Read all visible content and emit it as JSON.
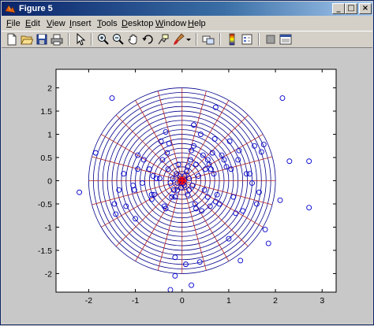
{
  "window": {
    "title": "Figure 5"
  },
  "titlebar_buttons": {
    "minimize": "_",
    "maximize": "□",
    "close": "×"
  },
  "menu": [
    {
      "label": "File",
      "accel": "F",
      "rest": "ile"
    },
    {
      "label": "Edit",
      "accel": "E",
      "rest": "dit"
    },
    {
      "label": "View",
      "accel": "V",
      "rest": "iew"
    },
    {
      "label": "Insert",
      "accel": "I",
      "rest": "nsert"
    },
    {
      "label": "Tools",
      "accel": "T",
      "rest": "ools"
    },
    {
      "label": "Desktop",
      "accel": "D",
      "rest": "esktop"
    },
    {
      "label": "Window",
      "accel": "W",
      "rest": "indow"
    },
    {
      "label": "Help",
      "accel": "H",
      "rest": "elp"
    }
  ],
  "toolbar": {
    "icons": [
      "new-figure-icon",
      "open-file-icon",
      "save-icon",
      "print-icon",
      "arrow-select-icon",
      "zoom-in-icon",
      "zoom-out-icon",
      "pan-hand-icon",
      "rotate-3d-icon",
      "data-cursor-icon",
      "brush-icon",
      "brush-dropdown-icon",
      "link-plot-icon",
      "insert-colorbar-icon",
      "insert-legend-icon",
      "hide-plot-tools-icon",
      "show-plot-tools-icon"
    ]
  },
  "colors": {
    "grid": "#00008b",
    "spokes": "#b22222",
    "points": "#0000cd",
    "center": "#ff0000"
  },
  "chart_data": {
    "type": "scatter",
    "title": "",
    "xlabel": "",
    "ylabel": "",
    "xlim": [
      -2.7,
      3.3
    ],
    "ylim": [
      -2.4,
      2.4
    ],
    "xticks": [
      -2,
      -1,
      0,
      1,
      2,
      3
    ],
    "yticks": [
      -2,
      -1.5,
      -1,
      -0.5,
      0,
      0.5,
      1,
      1.5,
      2
    ],
    "xtick_labels": [
      "-2",
      "-1",
      "0",
      "1",
      "2",
      "3"
    ],
    "ytick_labels": [
      "-2",
      "-1.5",
      "-1",
      "-0.5",
      "0",
      "0.5",
      "1",
      "1.5",
      "2"
    ],
    "polar_grid": {
      "max_radius": 2.0,
      "ring_count": 20,
      "spoke_count": 24
    },
    "center_marker": {
      "x": 0,
      "y": 0
    },
    "marker": "circle-open",
    "points": [
      [
        -2.2,
        -0.25
      ],
      [
        -1.85,
        0.6
      ],
      [
        -1.5,
        1.78
      ],
      [
        -1.45,
        -0.5
      ],
      [
        -1.42,
        -0.72
      ],
      [
        -1.35,
        -0.2
      ],
      [
        -1.25,
        0.15
      ],
      [
        -1.2,
        -0.55
      ],
      [
        -1.05,
        -0.1
      ],
      [
        -1.02,
        -0.2
      ],
      [
        -1.0,
        -0.82
      ],
      [
        -0.95,
        0.55
      ],
      [
        -0.95,
        0.25
      ],
      [
        -0.85,
        -0.05
      ],
      [
        -0.82,
        0.45
      ],
      [
        -0.7,
        0.25
      ],
      [
        -0.65,
        -0.3
      ],
      [
        -0.65,
        -0.4
      ],
      [
        -0.6,
        -0.3
      ],
      [
        -0.62,
        0.1
      ],
      [
        -0.55,
        0.05
      ],
      [
        -0.48,
        0.05
      ],
      [
        -0.45,
        0.85
      ],
      [
        -0.42,
        0.45
      ],
      [
        -0.38,
        -0.55
      ],
      [
        -0.35,
        -0.6
      ],
      [
        -0.35,
        1.05
      ],
      [
        -0.32,
        0.6
      ],
      [
        -0.3,
        0.25
      ],
      [
        -0.28,
        0.8
      ],
      [
        -0.25,
        -0.05
      ],
      [
        -0.22,
        -0.35
      ],
      [
        -0.2,
        0.05
      ],
      [
        -0.18,
        -0.2
      ],
      [
        -0.15,
        -0.35
      ],
      [
        -0.15,
        -1.65
      ],
      [
        -0.12,
        0.15
      ],
      [
        -0.1,
        -0.05
      ],
      [
        -0.1,
        -0.2
      ],
      [
        -0.08,
        0.35
      ],
      [
        -0.05,
        0.1
      ],
      [
        -0.02,
        -0.15
      ],
      [
        0.0,
        0.0
      ],
      [
        0.02,
        -0.05
      ],
      [
        0.05,
        0.1
      ],
      [
        0.05,
        -0.1
      ],
      [
        0.08,
        -1.8
      ],
      [
        0.1,
        0.2
      ],
      [
        0.12,
        0.3
      ],
      [
        0.12,
        -0.3
      ],
      [
        0.15,
        0.05
      ],
      [
        0.15,
        -0.2
      ],
      [
        0.18,
        0.45
      ],
      [
        0.2,
        0.65
      ],
      [
        0.22,
        -0.1
      ],
      [
        0.25,
        0.75
      ],
      [
        0.25,
        1.2
      ],
      [
        0.28,
        -0.5
      ],
      [
        0.3,
        -0.6
      ],
      [
        0.3,
        0.35
      ],
      [
        0.35,
        0.1
      ],
      [
        0.38,
        -1.75
      ],
      [
        0.4,
        1.0
      ],
      [
        0.42,
        -0.65
      ],
      [
        0.45,
        0.55
      ],
      [
        0.48,
        -0.2
      ],
      [
        0.5,
        0.25
      ],
      [
        0.55,
        0.45
      ],
      [
        0.55,
        -0.35
      ],
      [
        0.58,
        0.35
      ],
      [
        0.6,
        -0.55
      ],
      [
        0.62,
        0.25
      ],
      [
        0.65,
        0.6
      ],
      [
        0.68,
        0.15
      ],
      [
        0.7,
        0.9
      ],
      [
        0.72,
        1.58
      ],
      [
        0.72,
        -0.45
      ],
      [
        0.75,
        -0.3
      ],
      [
        0.8,
        -0.5
      ],
      [
        0.85,
        0.55
      ],
      [
        0.9,
        0.45
      ],
      [
        0.95,
        0.3
      ],
      [
        1.0,
        -1.25
      ],
      [
        1.02,
        0.85
      ],
      [
        1.05,
        0.25
      ],
      [
        1.1,
        -0.35
      ],
      [
        1.15,
        -0.7
      ],
      [
        1.2,
        0.45
      ],
      [
        1.22,
        0.65
      ],
      [
        1.25,
        -1.72
      ],
      [
        1.3,
        -0.65
      ],
      [
        1.38,
        0.15
      ],
      [
        1.45,
        0.15
      ],
      [
        1.5,
        -0.05
      ],
      [
        1.55,
        0.75
      ],
      [
        1.6,
        -0.5
      ],
      [
        1.65,
        -0.25
      ],
      [
        1.7,
        0.62
      ],
      [
        1.75,
        0.78
      ],
      [
        1.78,
        -1.05
      ],
      [
        1.85,
        -1.35
      ],
      [
        2.1,
        -0.42
      ],
      [
        2.15,
        1.78
      ],
      [
        2.3,
        0.42
      ],
      [
        2.72,
        0.42
      ],
      [
        2.72,
        -0.58
      ],
      [
        -0.25,
        -2.35
      ],
      [
        0.2,
        -2.25
      ],
      [
        -0.15,
        -2.05
      ]
    ]
  }
}
